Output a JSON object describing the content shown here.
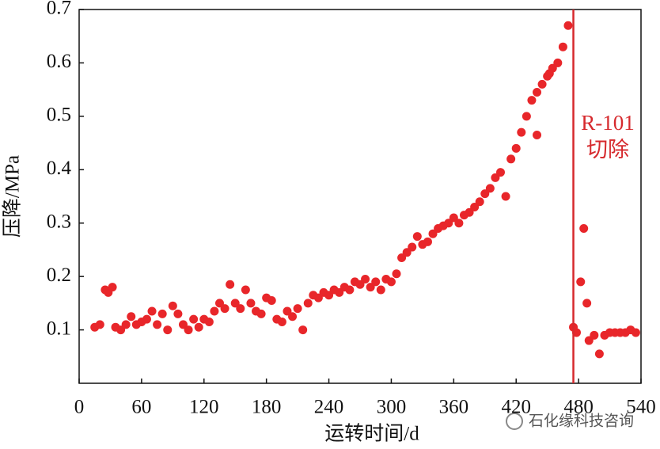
{
  "chart_data": {
    "type": "scatter",
    "x_label": "运转时间/d",
    "y_label": "压降/MPa",
    "xlim": [
      0,
      540
    ],
    "xticks": [
      0,
      60,
      120,
      180,
      240,
      300,
      360,
      420,
      480,
      540
    ],
    "ylim": [
      0,
      0.7
    ],
    "yticks": [
      0.1,
      0.2,
      0.3,
      0.4,
      0.5,
      0.6,
      0.7
    ],
    "series": [
      {
        "color": "#e8262a",
        "x": [
          15,
          20,
          25,
          28,
          32,
          35,
          40,
          45,
          50,
          55,
          60,
          65,
          70,
          75,
          80,
          85,
          90,
          95,
          100,
          105,
          110,
          115,
          120,
          125,
          130,
          135,
          140,
          145,
          150,
          155,
          160,
          165,
          170,
          175,
          180,
          185,
          190,
          195,
          200,
          205,
          210,
          215,
          220,
          225,
          230,
          235,
          240,
          245,
          250,
          255,
          260,
          265,
          270,
          275,
          280,
          285,
          290,
          295,
          300,
          305,
          310,
          315,
          320,
          325,
          330,
          335,
          340,
          345,
          350,
          355,
          360,
          365,
          370,
          375,
          380,
          385,
          390,
          395,
          400,
          405,
          410,
          415,
          420,
          425,
          430,
          435,
          440,
          440,
          445,
          450,
          452,
          455,
          460,
          465,
          470,
          475,
          478,
          482,
          485,
          488,
          490,
          495,
          500,
          505,
          510,
          515,
          520,
          525,
          530,
          535
        ],
        "values": [
          0.105,
          0.11,
          0.175,
          0.17,
          0.18,
          0.105,
          0.1,
          0.11,
          0.125,
          0.11,
          0.115,
          0.12,
          0.135,
          0.11,
          0.13,
          0.1,
          0.145,
          0.13,
          0.11,
          0.1,
          0.12,
          0.105,
          0.12,
          0.115,
          0.135,
          0.15,
          0.14,
          0.185,
          0.15,
          0.14,
          0.175,
          0.15,
          0.135,
          0.13,
          0.16,
          0.155,
          0.12,
          0.115,
          0.135,
          0.125,
          0.14,
          0.1,
          0.15,
          0.165,
          0.16,
          0.17,
          0.165,
          0.175,
          0.17,
          0.18,
          0.175,
          0.19,
          0.185,
          0.195,
          0.18,
          0.19,
          0.175,
          0.195,
          0.19,
          0.205,
          0.235,
          0.245,
          0.255,
          0.275,
          0.26,
          0.265,
          0.28,
          0.29,
          0.295,
          0.3,
          0.31,
          0.3,
          0.315,
          0.32,
          0.33,
          0.34,
          0.355,
          0.365,
          0.385,
          0.395,
          0.35,
          0.42,
          0.44,
          0.47,
          0.5,
          0.53,
          0.545,
          0.465,
          0.56,
          0.575,
          0.58,
          0.59,
          0.6,
          0.63,
          0.67,
          0.105,
          0.095,
          0.19,
          0.29,
          0.15,
          0.08,
          0.09,
          0.055,
          0.09,
          0.095,
          0.095,
          0.095,
          0.095,
          0.1,
          0.095
        ]
      }
    ],
    "vline": {
      "x": 475,
      "color": "#d62a2e",
      "label": [
        "R-101",
        "切除"
      ]
    },
    "watermark": "石化缘科技咨询"
  }
}
